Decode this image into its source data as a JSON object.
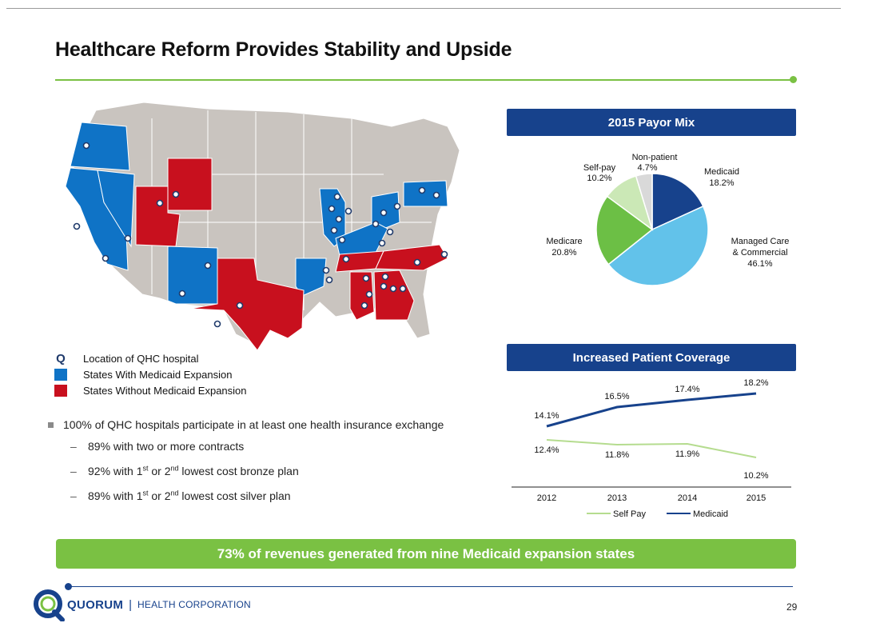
{
  "slide": {
    "title": "Healthcare Reform Provides Stability and Upside",
    "page_number": "29"
  },
  "map": {
    "legend": [
      {
        "symbol": "Q",
        "label": "Location of QHC hospital"
      },
      {
        "symbol": "blue",
        "label": "States With Medicaid Expansion"
      },
      {
        "symbol": "red",
        "label": "States Without Medicaid Expansion"
      }
    ],
    "colors": {
      "expansion": "#0f73c6",
      "non_expansion": "#c8101e",
      "other": "#c9c4bf"
    }
  },
  "bullets": {
    "main": "100% of QHC hospitals participate in at least one health insurance exchange",
    "sub": [
      {
        "before": "89% with two or more contracts",
        "sup1": "",
        "mid": "",
        "sup2": "",
        "after": ""
      },
      {
        "before": "92% with 1",
        "sup1": "st",
        "mid": " or 2",
        "sup2": "nd",
        "after": " lowest cost bronze plan"
      },
      {
        "before": "89% with 1",
        "sup1": "st",
        "mid": " or 2",
        "sup2": "nd",
        "after": " lowest cost silver plan"
      }
    ]
  },
  "payor_mix": {
    "header": "2015 Payor Mix",
    "chart_data": {
      "type": "pie",
      "slices": [
        {
          "name": "Medicaid",
          "value": 18.2,
          "label": "18.2%",
          "color": "#17428c"
        },
        {
          "name": "Managed Care & Commercial",
          "value": 46.1,
          "label": "46.1%",
          "color": "#62c2ea"
        },
        {
          "name": "Medicare",
          "value": 20.8,
          "label": "20.8%",
          "color": "#6cbf45"
        },
        {
          "name": "Self-pay",
          "value": 10.2,
          "label": "10.2%",
          "color": "#cbe8b6"
        },
        {
          "name": "Non-patient",
          "value": 4.7,
          "label": "4.7%",
          "color": "#d9d9d9"
        }
      ]
    },
    "labels": {
      "medicaid_name": "Medicaid",
      "medicaid_val": "18.2%",
      "mc_line1": "Managed Care",
      "mc_line2": "& Commercial",
      "mc_val": "46.1%",
      "medicare_name": "Medicare",
      "medicare_val": "20.8%",
      "selfpay_name": "Self-pay",
      "selfpay_val": "10.2%",
      "nonpatient_name": "Non-patient",
      "nonpatient_val": "4.7%"
    }
  },
  "coverage": {
    "header": "Increased Patient Coverage",
    "chart_data": {
      "type": "line",
      "categories": [
        "2012",
        "2013",
        "2014",
        "2015"
      ],
      "series": [
        {
          "name": "Self Pay",
          "values": [
            12.4,
            11.8,
            11.9,
            10.2
          ],
          "labels": [
            "12.4%",
            "11.8%",
            "11.9%",
            "10.2%"
          ],
          "color": "#b5dc8f"
        },
        {
          "name": "Medicaid",
          "values": [
            14.1,
            16.5,
            17.4,
            18.2
          ],
          "labels": [
            "14.1%",
            "16.5%",
            "17.4%",
            "18.2%"
          ],
          "color": "#17428c"
        }
      ],
      "legend": "bottom"
    }
  },
  "banner": {
    "text": "73% of revenues generated from nine Medicaid expansion states"
  },
  "footer": {
    "logo_word": "QUORUM",
    "logo_sep": "|",
    "logo_sub": "HEALTH CORPORATION"
  }
}
